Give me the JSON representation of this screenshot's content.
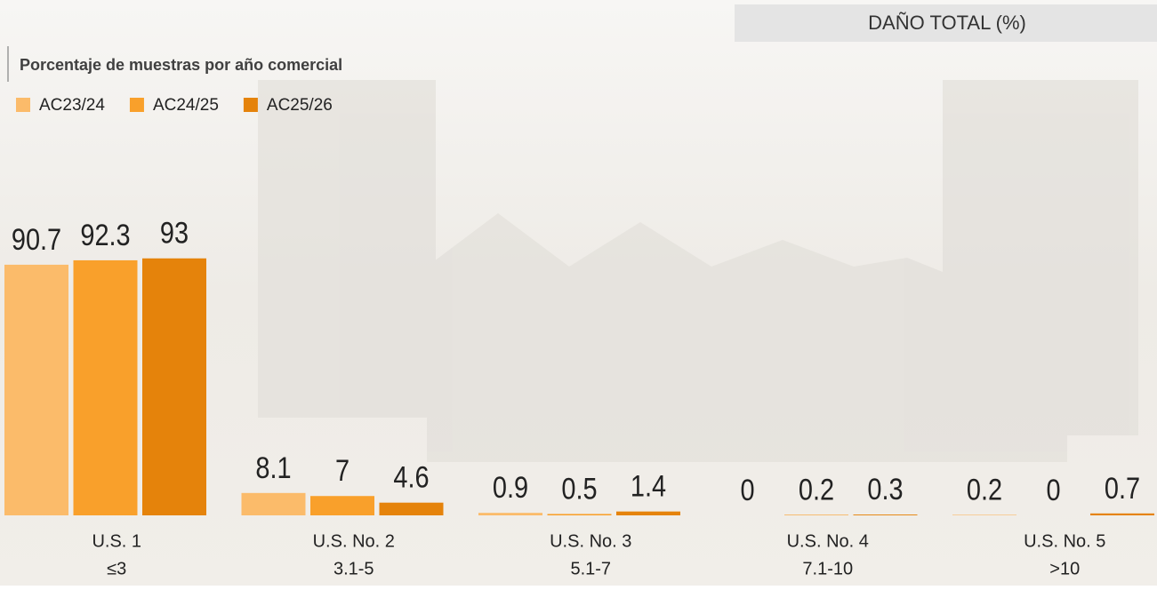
{
  "chart_data": {
    "type": "bar",
    "title": "DAÑO TOTAL (%)",
    "subtitle": "Porcentaje de muestras por año comercial",
    "categories": [
      "U.S. 1",
      "U.S. No. 2",
      "U.S. No. 3",
      "U.S. No. 4",
      "U.S. No. 5"
    ],
    "category_ranges": [
      "≤3",
      "3.1-5",
      "5.1-7",
      "7.1-10",
      ">10"
    ],
    "series": [
      {
        "name": "AC23/24",
        "color": "#fbbb6a",
        "values": [
          90.7,
          8.1,
          0.9,
          0,
          0.2
        ]
      },
      {
        "name": "AC24/25",
        "color": "#f9a02b",
        "values": [
          92.3,
          7,
          0.5,
          0.2,
          0
        ]
      },
      {
        "name": "AC25/26",
        "color": "#e5830b",
        "values": [
          93,
          4.6,
          1.4,
          0.3,
          0.7
        ]
      }
    ],
    "ylim": [
      0,
      100
    ]
  }
}
